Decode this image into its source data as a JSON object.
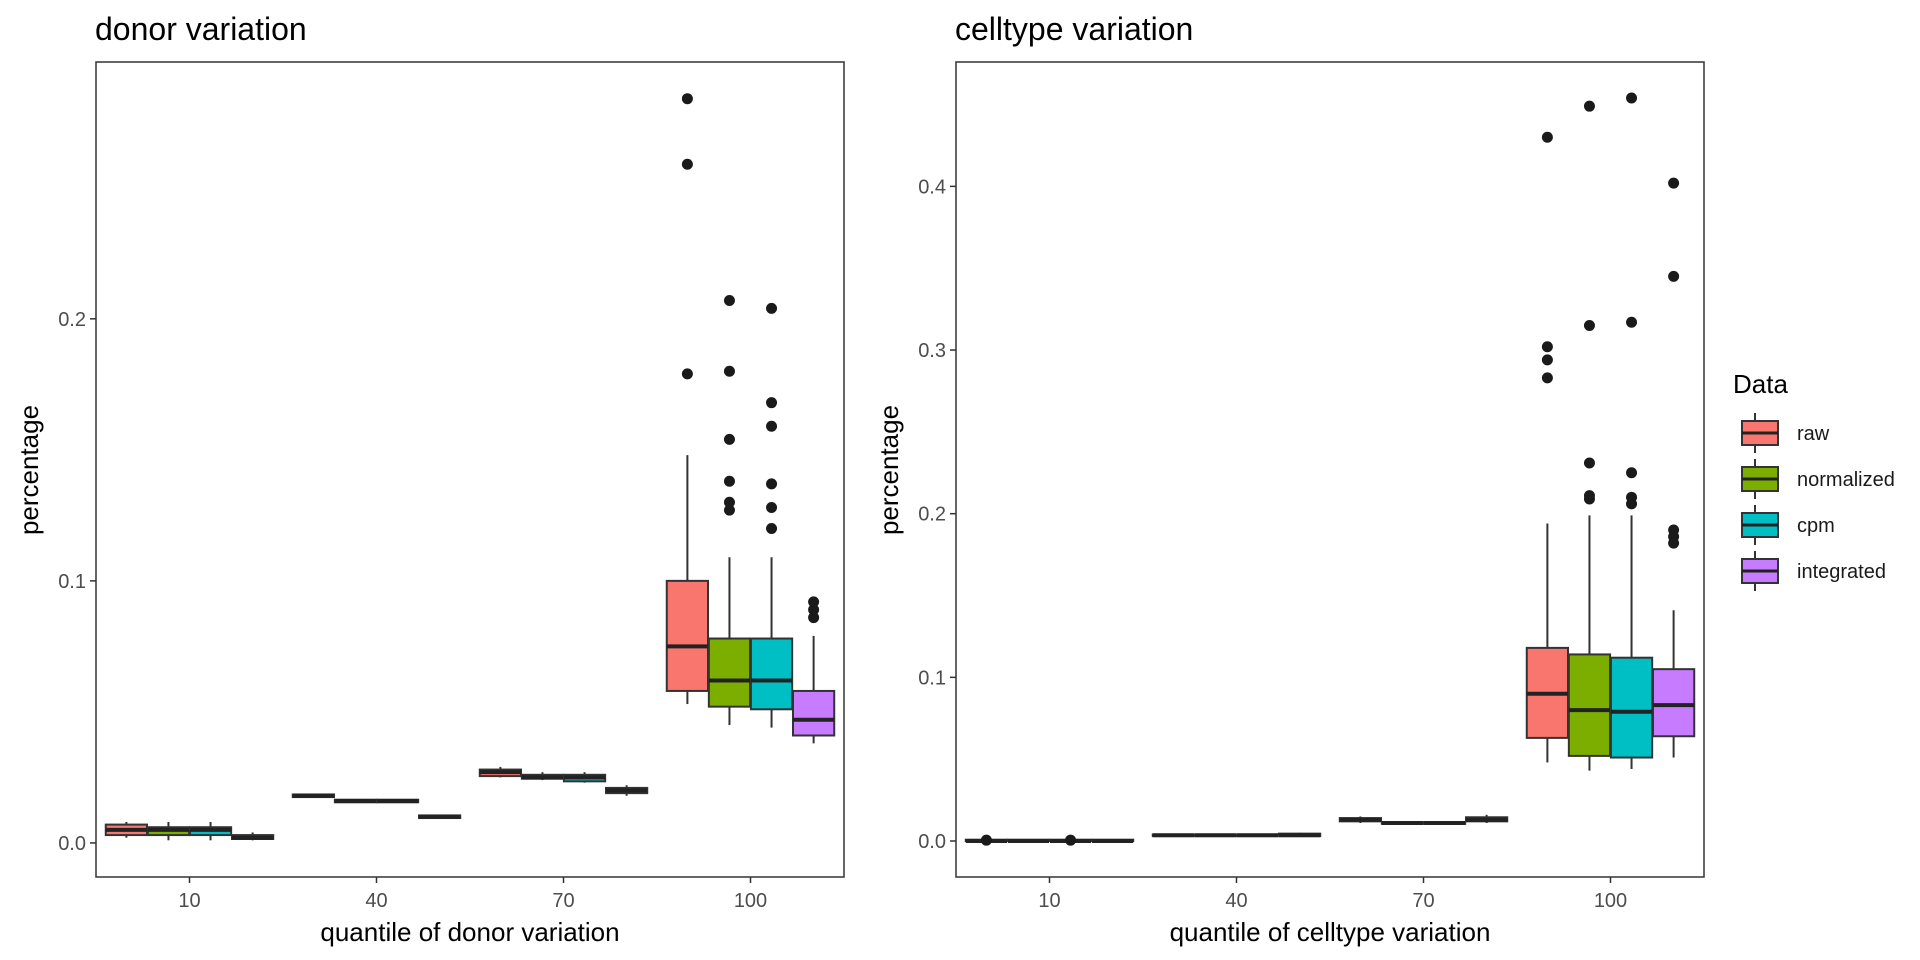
{
  "legend": {
    "title": "Data",
    "placement": "right",
    "items": [
      {
        "label": "raw",
        "color": "#F8766D"
      },
      {
        "label": "normalized",
        "color": "#7CAE00"
      },
      {
        "label": "cpm",
        "color": "#00BFC4"
      },
      {
        "label": "integrated",
        "color": "#C77CFF"
      }
    ]
  },
  "chart_data": [
    {
      "type": "boxplot",
      "title": "donor variation",
      "xlabel": "quantile of donor variation",
      "ylabel": "percentage",
      "categories": [
        "10",
        "40",
        "70",
        "100"
      ],
      "yticks": [
        "0.0",
        "0.1",
        "0.2"
      ],
      "ytick_values": [
        0.0,
        0.1,
        0.2
      ],
      "ylim": [
        -0.013,
        0.298
      ],
      "grid": false,
      "series": [
        {
          "name": "raw",
          "boxes": [
            {
              "min": 0.002,
              "q1": 0.003,
              "median": 0.005,
              "q3": 0.007,
              "max": 0.008,
              "outliers": []
            },
            {
              "min": 0.0175,
              "q1": 0.0175,
              "median": 0.018,
              "q3": 0.0185,
              "max": 0.0185,
              "outliers": []
            },
            {
              "min": 0.025,
              "q1": 0.0255,
              "median": 0.027,
              "q3": 0.028,
              "max": 0.029,
              "outliers": []
            },
            {
              "min": 0.053,
              "q1": 0.058,
              "median": 0.075,
              "q3": 0.1,
              "max": 0.148,
              "outliers": [
                0.179,
                0.259,
                0.284
              ]
            }
          ]
        },
        {
          "name": "normalized",
          "boxes": [
            {
              "min": 0.001,
              "q1": 0.003,
              "median": 0.005,
              "q3": 0.006,
              "max": 0.008,
              "outliers": []
            },
            {
              "min": 0.0155,
              "q1": 0.0155,
              "median": 0.016,
              "q3": 0.0165,
              "max": 0.0165,
              "outliers": []
            },
            {
              "min": 0.024,
              "q1": 0.0245,
              "median": 0.025,
              "q3": 0.026,
              "max": 0.027,
              "outliers": []
            },
            {
              "min": 0.045,
              "q1": 0.052,
              "median": 0.062,
              "q3": 0.078,
              "max": 0.109,
              "outliers": [
                0.127,
                0.13,
                0.138,
                0.154,
                0.18,
                0.207
              ]
            }
          ]
        },
        {
          "name": "cpm",
          "boxes": [
            {
              "min": 0.001,
              "q1": 0.003,
              "median": 0.005,
              "q3": 0.006,
              "max": 0.008,
              "outliers": []
            },
            {
              "min": 0.0155,
              "q1": 0.0155,
              "median": 0.016,
              "q3": 0.0165,
              "max": 0.0165,
              "outliers": []
            },
            {
              "min": 0.023,
              "q1": 0.0235,
              "median": 0.025,
              "q3": 0.026,
              "max": 0.027,
              "outliers": []
            },
            {
              "min": 0.044,
              "q1": 0.051,
              "median": 0.062,
              "q3": 0.078,
              "max": 0.109,
              "outliers": [
                0.12,
                0.128,
                0.137,
                0.159,
                0.168,
                0.204
              ]
            }
          ]
        },
        {
          "name": "integrated",
          "boxes": [
            {
              "min": 0.001,
              "q1": 0.0015,
              "median": 0.002,
              "q3": 0.003,
              "max": 0.004,
              "outliers": []
            },
            {
              "min": 0.0095,
              "q1": 0.0095,
              "median": 0.01,
              "q3": 0.0105,
              "max": 0.0105,
              "outliers": []
            },
            {
              "min": 0.018,
              "q1": 0.019,
              "median": 0.02,
              "q3": 0.021,
              "max": 0.022,
              "outliers": []
            },
            {
              "min": 0.038,
              "q1": 0.041,
              "median": 0.047,
              "q3": 0.058,
              "max": 0.079,
              "outliers": [
                0.086,
                0.089,
                0.092
              ]
            }
          ]
        }
      ]
    },
    {
      "type": "boxplot",
      "title": "celltype variation",
      "xlabel": "quantile of celltype variation",
      "ylabel": "percentage",
      "categories": [
        "10",
        "40",
        "70",
        "100"
      ],
      "yticks": [
        "0.0",
        "0.1",
        "0.2",
        "0.3",
        "0.4"
      ],
      "ytick_values": [
        0.0,
        0.1,
        0.2,
        0.3,
        0.4
      ],
      "ylim": [
        -0.022,
        0.476
      ],
      "grid": false,
      "series": [
        {
          "name": "raw",
          "boxes": [
            {
              "min": 0.0,
              "q1": 0.0,
              "median": 0.0,
              "q3": 0.0008,
              "max": 0.001,
              "outliers": [
                0.0005
              ]
            },
            {
              "min": 0.0025,
              "q1": 0.003,
              "median": 0.0035,
              "q3": 0.004,
              "max": 0.0045,
              "outliers": []
            },
            {
              "min": 0.011,
              "q1": 0.012,
              "median": 0.013,
              "q3": 0.014,
              "max": 0.015,
              "outliers": []
            },
            {
              "min": 0.048,
              "q1": 0.063,
              "median": 0.09,
              "q3": 0.118,
              "max": 0.194,
              "outliers": [
                0.283,
                0.294,
                0.302,
                0.43
              ]
            }
          ]
        },
        {
          "name": "normalized",
          "boxes": [
            {
              "min": 0.0,
              "q1": 0.0,
              "median": 0.0,
              "q3": 0.0008,
              "max": 0.001,
              "outliers": []
            },
            {
              "min": 0.0025,
              "q1": 0.003,
              "median": 0.0035,
              "q3": 0.004,
              "max": 0.0045,
              "outliers": []
            },
            {
              "min": 0.01,
              "q1": 0.0105,
              "median": 0.011,
              "q3": 0.0115,
              "max": 0.012,
              "outliers": []
            },
            {
              "min": 0.043,
              "q1": 0.052,
              "median": 0.08,
              "q3": 0.114,
              "max": 0.199,
              "outliers": [
                0.209,
                0.211,
                0.231,
                0.315,
                0.449
              ]
            }
          ]
        },
        {
          "name": "cpm",
          "boxes": [
            {
              "min": 0.0,
              "q1": 0.0,
              "median": 0.0,
              "q3": 0.0008,
              "max": 0.001,
              "outliers": [
                0.0005
              ]
            },
            {
              "min": 0.0025,
              "q1": 0.003,
              "median": 0.0035,
              "q3": 0.004,
              "max": 0.0045,
              "outliers": []
            },
            {
              "min": 0.01,
              "q1": 0.0105,
              "median": 0.011,
              "q3": 0.0115,
              "max": 0.012,
              "outliers": []
            },
            {
              "min": 0.044,
              "q1": 0.051,
              "median": 0.079,
              "q3": 0.112,
              "max": 0.199,
              "outliers": [
                0.206,
                0.21,
                0.225,
                0.317,
                0.454
              ]
            }
          ]
        },
        {
          "name": "integrated",
          "boxes": [
            {
              "min": 0.0,
              "q1": 0.0,
              "median": 0.0,
              "q3": 0.0008,
              "max": 0.001,
              "outliers": []
            },
            {
              "min": 0.0025,
              "q1": 0.003,
              "median": 0.0035,
              "q3": 0.0045,
              "max": 0.005,
              "outliers": []
            },
            {
              "min": 0.011,
              "q1": 0.012,
              "median": 0.013,
              "q3": 0.0145,
              "max": 0.016,
              "outliers": []
            },
            {
              "min": 0.051,
              "q1": 0.064,
              "median": 0.083,
              "q3": 0.105,
              "max": 0.141,
              "outliers": [
                0.182,
                0.186,
                0.19,
                0.345,
                0.402
              ]
            }
          ]
        }
      ]
    }
  ]
}
